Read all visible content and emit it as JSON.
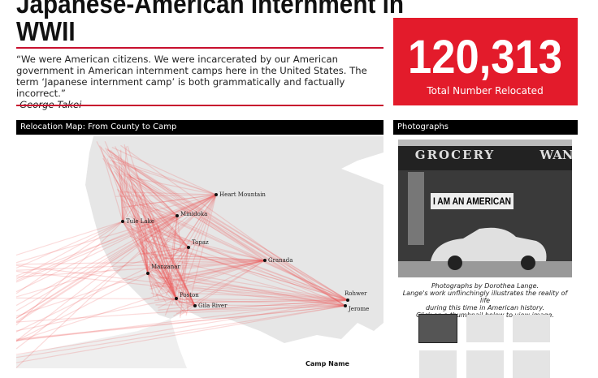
{
  "header": {
    "title_line1": "Japanese-American Internment in",
    "title_line2": "WWII"
  },
  "quote": {
    "text": "“We were American citizens. We were incarcerated by our American government in American internment camps here in the United States. The term ‘Japanese internment camp’ is both grammatically and factually incorrect.”",
    "attribution": "-George Takei"
  },
  "kpi": {
    "value": "120,313",
    "label": "Total Number Relocated"
  },
  "map": {
    "title": "Relocation Map: From County to Camp",
    "legend_title": "Camp Name",
    "camps": [
      "Heart Mountain",
      "Minidoka",
      "Tule Lake",
      "Topaz",
      "Granada",
      "Manzanar",
      "Poston",
      "Gila River",
      "Rohwer",
      "Jerome"
    ]
  },
  "photos": {
    "title": "Photographs",
    "sign_store": "GROCERY",
    "sign_store2": "WAN",
    "sign_banner": "I AM AN AMERICAN",
    "caption": [
      "Photographs by Dorothea Lange.",
      "Lange's work unflinchingly illustrates the reality of life",
      "during this time in American history.",
      "Click on a thumbnail below to view image."
    ]
  }
}
